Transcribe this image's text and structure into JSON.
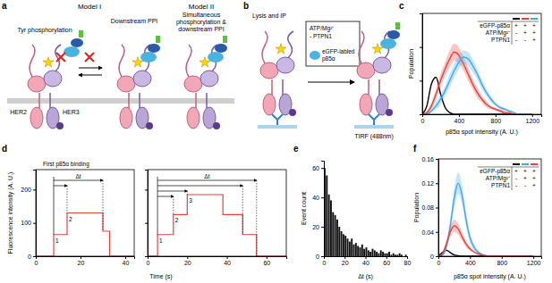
{
  "panel_labels": [
    "a",
    "b",
    "c",
    "d",
    "e",
    "f"
  ],
  "diagram_a": {
    "titles": [
      "Model I",
      "Model II"
    ],
    "step_labels": [
      "Tyr phosphorylation",
      "Downstream PPI"
    ],
    "model2_text": [
      "Simultaneous",
      "phosphorylation &",
      "downstream PPI"
    ],
    "receptors": [
      "HER2",
      "HER3"
    ]
  },
  "diagram_b": {
    "top_label": "Lysis and IP",
    "box_lines": [
      "ATP/Mg²⁺",
      "- PTPN1"
    ],
    "probe_lines": [
      "eGFP-labled",
      "p85α"
    ],
    "bottom_label": "TIRF (488nm)"
  },
  "chart_data": [
    {
      "type": "line",
      "x_label": "p85α spot intensity (A. U.)",
      "y_label": "Population",
      "x": [
        0,
        50,
        100,
        150,
        200,
        250,
        300,
        350,
        400,
        450,
        500,
        550,
        600,
        650,
        700,
        750,
        800,
        850,
        900,
        950,
        1000,
        1050,
        1100,
        1150,
        1200
      ],
      "series": [
        {
          "color": "#000000",
          "values": [
            0,
            0.005,
            0.018,
            0.022,
            0.012,
            0.004,
            0.001,
            0,
            0,
            0,
            0,
            0,
            0,
            0,
            0,
            0,
            0,
            0,
            0,
            0,
            0,
            0,
            0,
            0,
            0
          ]
        },
        {
          "color": "#e8413c",
          "values": [
            0,
            0.001,
            0.005,
            0.012,
            0.02,
            0.027,
            0.033,
            0.037,
            0.035,
            0.03,
            0.024,
            0.018,
            0.013,
            0.009,
            0.006,
            0.004,
            0.003,
            0.002,
            0.001,
            0.001,
            0,
            0,
            0,
            0,
            0
          ],
          "error": [
            0,
            0.001,
            0.002,
            0.003,
            0.004,
            0.004,
            0.005,
            0.005,
            0.005,
            0.004,
            0.004,
            0.003,
            0.003,
            0.002,
            0.002,
            0.001,
            0.001,
            0.001,
            0.001,
            0,
            0,
            0,
            0,
            0,
            0
          ]
        },
        {
          "color": "#3fa9e8",
          "values": [
            0,
            0,
            0.002,
            0.005,
            0.009,
            0.014,
            0.02,
            0.026,
            0.031,
            0.034,
            0.033,
            0.029,
            0.024,
            0.018,
            0.013,
            0.009,
            0.006,
            0.004,
            0.003,
            0.002,
            0.001,
            0,
            0,
            0,
            0
          ],
          "error": [
            0,
            0,
            0.001,
            0.002,
            0.003,
            0.003,
            0.004,
            0.004,
            0.004,
            0.004,
            0.004,
            0.004,
            0.003,
            0.003,
            0.002,
            0.002,
            0.001,
            0.001,
            0.001,
            0,
            0,
            0,
            0,
            0,
            0
          ]
        }
      ],
      "xlim": [
        0,
        1300
      ],
      "ylim": [
        0,
        0.06
      ],
      "xticks": [
        0,
        400,
        800,
        1200
      ],
      "yticks": [
        0,
        0.02,
        0.04,
        0.06
      ],
      "tick_labels": "x",
      "conditions": [
        {
          "label": "eGFP-p85α",
          "marks": [
            "+",
            "+",
            "+"
          ]
        },
        {
          "label": "ATP/Mg²⁺",
          "marks": [
            "-",
            "+",
            "+"
          ]
        },
        {
          "label": "PTPN1",
          "marks": [
            "-",
            "-",
            "+"
          ]
        }
      ]
    },
    {
      "type": "step",
      "x_label": "Time (s)",
      "y_label": "Fluorescence intensity (A. U.)",
      "x": [
        0,
        8,
        14,
        30,
        33,
        44
      ],
      "series": [
        {
          "color": "#e8413c",
          "values": [
            0,
            65,
            130,
            75,
            0,
            0
          ]
        }
      ],
      "xlim": [
        0,
        44
      ],
      "ylim": [
        0,
        260
      ],
      "xticks": [
        0,
        20,
        40
      ],
      "yticks": [
        0,
        100,
        200
      ],
      "annotations": [
        "First p85α binding"
      ],
      "delta_t": [
        14,
        30
      ],
      "delta_t_label": "Δt",
      "step_labels": [
        "1",
        "2"
      ]
    },
    {
      "type": "step",
      "x": [
        0,
        5,
        13,
        20,
        38,
        48,
        55,
        70
      ],
      "series": [
        {
          "color": "#e8413c",
          "values": [
            0,
            65,
            125,
            185,
            125,
            65,
            0,
            0
          ]
        }
      ],
      "xlim": [
        0,
        70
      ],
      "ylim": [
        0,
        260
      ],
      "xticks": [
        0,
        20,
        40,
        60
      ],
      "yticks": [
        0,
        100,
        200
      ],
      "tick_labels": "x",
      "delta_t": [
        13,
        20,
        48,
        55
      ],
      "delta_t_label": "Δt",
      "step_labels": [
        "1",
        "2",
        "3"
      ]
    },
    {
      "type": "histogram",
      "x_label": "Δt (s)",
      "y_label": "Event count",
      "bins": [
        0,
        2,
        4,
        6,
        8,
        10,
        12,
        14,
        16,
        18,
        20,
        22,
        24,
        26,
        28,
        30,
        32,
        34,
        36,
        38,
        40,
        42,
        44,
        46,
        48,
        50,
        52,
        54,
        56,
        58,
        60,
        62,
        64,
        66,
        68,
        70,
        72,
        74,
        76,
        78,
        80
      ],
      "counts": [
        60,
        55,
        42,
        38,
        30,
        28,
        25,
        20,
        17,
        15,
        14,
        12,
        10,
        12,
        8,
        9,
        7,
        6,
        8,
        5,
        6,
        4,
        3,
        5,
        4,
        3,
        2,
        4,
        3,
        2,
        2,
        3,
        1,
        2,
        1,
        1,
        2,
        1,
        0,
        1
      ],
      "color": "#111111",
      "xlim": [
        0,
        80
      ],
      "ylim": [
        0,
        65
      ],
      "xticks": [
        0,
        20,
        40,
        60,
        80
      ],
      "yticks": [
        0,
        20,
        40,
        60
      ]
    },
    {
      "type": "line",
      "x_label": "p85α spot intensity (A. U.)",
      "y_label": "Population",
      "x": [
        0,
        50,
        100,
        150,
        200,
        250,
        300,
        350,
        400,
        450,
        500,
        550,
        600,
        650,
        700,
        750,
        800,
        850,
        900,
        950,
        1000,
        1050,
        1100,
        1150,
        1200
      ],
      "series": [
        {
          "color": "#000000",
          "values": [
            0,
            0.006,
            0.01,
            0.006,
            0.002,
            0.001,
            0,
            0,
            0,
            0,
            0,
            0,
            0,
            0,
            0,
            0,
            0,
            0,
            0,
            0,
            0,
            0,
            0,
            0,
            0
          ]
        },
        {
          "color": "#3fa9e8",
          "values": [
            0,
            0.002,
            0.015,
            0.05,
            0.095,
            0.12,
            0.1,
            0.06,
            0.03,
            0.015,
            0.007,
            0.003,
            0.001,
            0,
            0,
            0,
            0,
            0,
            0,
            0,
            0,
            0,
            0,
            0,
            0
          ],
          "error": [
            0,
            0.002,
            0.006,
            0.012,
            0.016,
            0.018,
            0.016,
            0.012,
            0.008,
            0.005,
            0.003,
            0.001,
            0,
            0,
            0,
            0,
            0,
            0,
            0,
            0,
            0,
            0,
            0,
            0,
            0
          ]
        },
        {
          "color": "#e8413c",
          "values": [
            0,
            0.004,
            0.02,
            0.04,
            0.05,
            0.045,
            0.032,
            0.02,
            0.012,
            0.007,
            0.004,
            0.002,
            0.001,
            0,
            0,
            0,
            0,
            0,
            0,
            0,
            0,
            0,
            0,
            0,
            0
          ],
          "error": [
            0,
            0.002,
            0.005,
            0.008,
            0.01,
            0.009,
            0.007,
            0.005,
            0.003,
            0.002,
            0.001,
            0.001,
            0,
            0,
            0,
            0,
            0,
            0,
            0,
            0,
            0,
            0,
            0,
            0,
            0
          ]
        }
      ],
      "xlim": [
        0,
        1300
      ],
      "ylim": [
        0,
        0.16
      ],
      "xticks": [
        0,
        400,
        800,
        1200
      ],
      "yticks": [
        0,
        0.04,
        0.08,
        0.12,
        0.16
      ],
      "conditions": [
        {
          "label": "eGFP-p85α",
          "marks": [
            "+",
            "+",
            "+"
          ]
        },
        {
          "label": "ATP/Mg²⁺",
          "marks": [
            "-",
            "+",
            "+"
          ]
        },
        {
          "label": "PTPN1",
          "marks": [
            "-",
            "-",
            "+"
          ]
        }
      ]
    }
  ]
}
